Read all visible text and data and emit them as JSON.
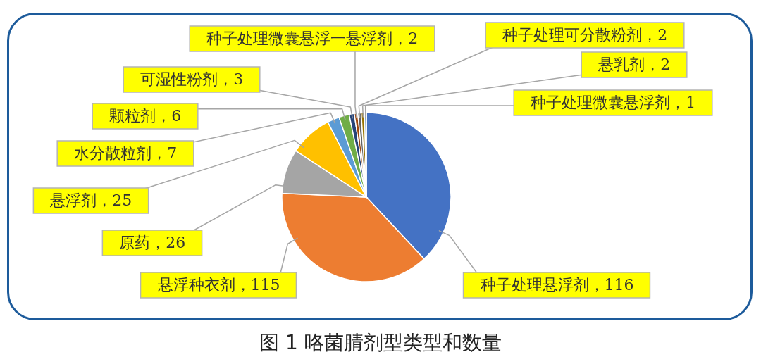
{
  "chart_data": {
    "type": "pie",
    "title": "图 1 咯菌腈剂型类型和数量",
    "categories": [
      "种子处理悬浮剂",
      "悬浮种衣剂",
      "原药",
      "悬浮剂",
      "水分散粒剂",
      "颗粒剂",
      "可湿性粉剂",
      "种子处理微囊悬浮一悬浮剂",
      "种子处理可分散粉剂",
      "悬乳剂",
      "种子处理微囊悬浮剂"
    ],
    "values": [
      116,
      115,
      26,
      25,
      7,
      6,
      3,
      2,
      2,
      2,
      1
    ],
    "colors": [
      "#4472c4",
      "#ed7d31",
      "#a5a5a5",
      "#ffc000",
      "#5b9bd5",
      "#70ad47",
      "#264478",
      "#9e480e",
      "#636363",
      "#997300",
      "#255e91"
    ],
    "value_labels": [
      "，116",
      "，115",
      "，26",
      "，25",
      "，7",
      "，6",
      "，3",
      "，2",
      "，2",
      "，2",
      "，1"
    ]
  }
}
